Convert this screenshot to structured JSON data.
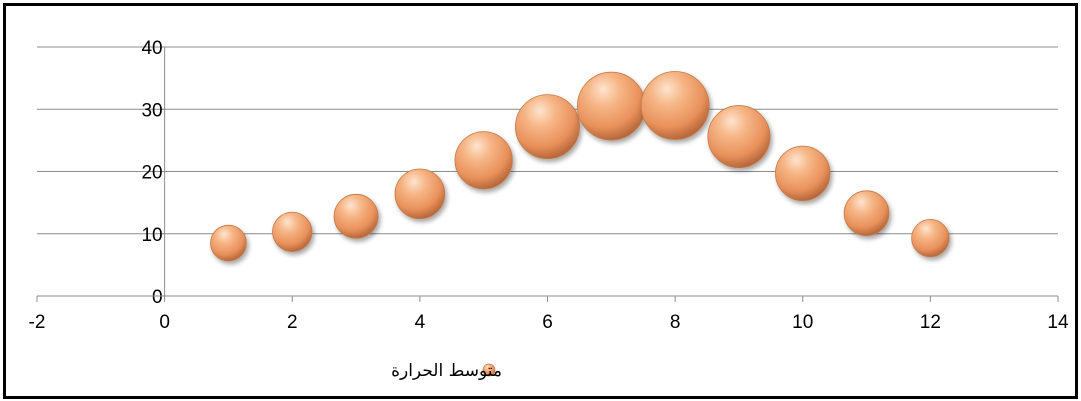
{
  "chart_data": {
    "type": "bubble",
    "title": "",
    "xlabel": "",
    "ylabel": "",
    "xlim": [
      -2,
      14
    ],
    "ylim": [
      0,
      40
    ],
    "x_ticks": [
      "-2",
      "0",
      "2",
      "4",
      "6",
      "8",
      "10",
      "12",
      "14"
    ],
    "y_ticks": [
      "0",
      "10",
      "20",
      "30",
      "40"
    ],
    "grid": "horizontal",
    "legend_position": "bottom",
    "series": [
      {
        "name": "متوسط الحرارة",
        "color": "#f0a070",
        "points": [
          {
            "x": 1,
            "y": 8.5,
            "size": 8.5
          },
          {
            "x": 2,
            "y": 10.3,
            "size": 10.3
          },
          {
            "x": 3,
            "y": 12.8,
            "size": 12.8
          },
          {
            "x": 4,
            "y": 16.4,
            "size": 16.4
          },
          {
            "x": 5,
            "y": 21.8,
            "size": 21.8
          },
          {
            "x": 6,
            "y": 27.2,
            "size": 27.2
          },
          {
            "x": 7,
            "y": 30.5,
            "size": 30.5
          },
          {
            "x": 8,
            "y": 30.6,
            "size": 30.6
          },
          {
            "x": 9,
            "y": 25.6,
            "size": 25.6
          },
          {
            "x": 10,
            "y": 19.7,
            "size": 19.7
          },
          {
            "x": 11,
            "y": 13.3,
            "size": 13.3
          },
          {
            "x": 12,
            "y": 9.3,
            "size": 9.3
          }
        ]
      }
    ]
  }
}
